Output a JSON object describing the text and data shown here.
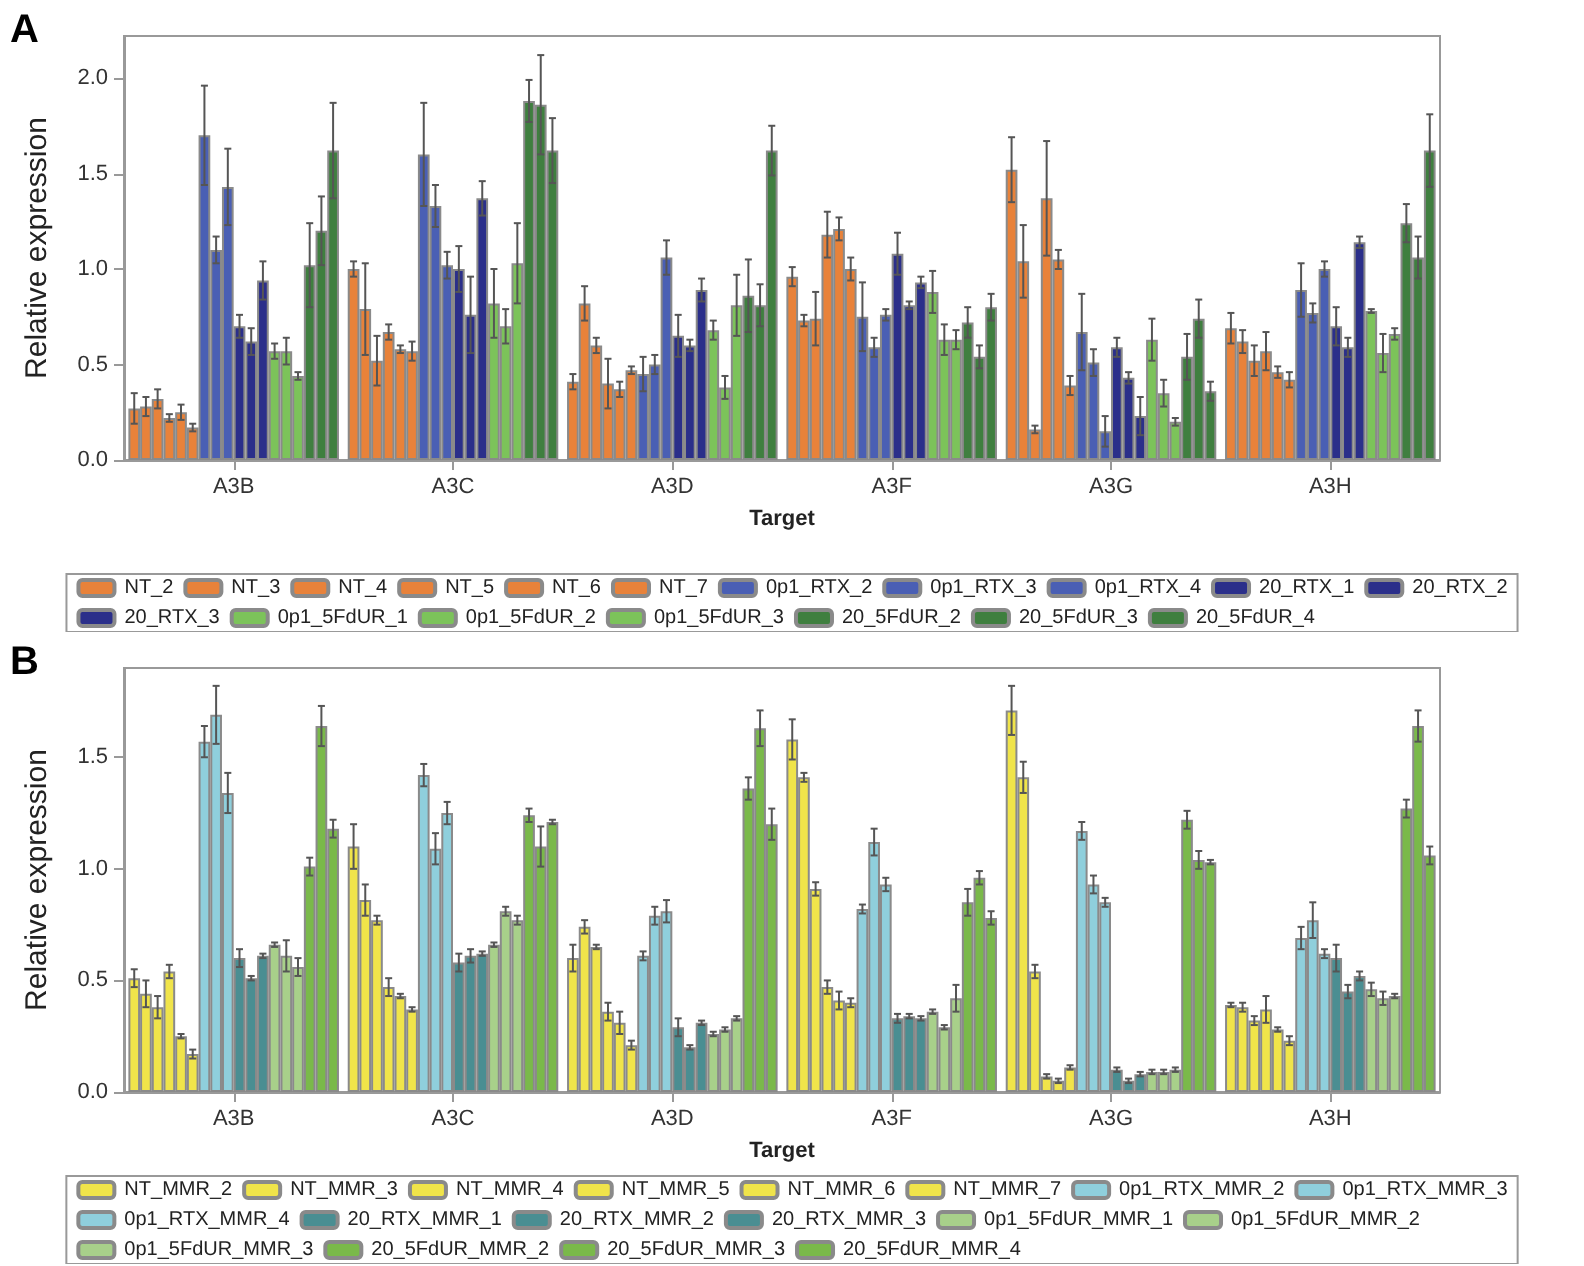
{
  "chart_data": [
    {
      "type": "bar",
      "title": "A",
      "xlabel": "Target",
      "ylabel": "Relative expression",
      "categories": [
        "A3B",
        "A3C",
        "A3D",
        "A3F",
        "A3G",
        "A3H"
      ],
      "ylim": [
        0,
        2.22
      ],
      "yticks": [
        {
          "value": 0,
          "label": "0.0"
        },
        {
          "value": 0.5,
          "label": "0.5"
        },
        {
          "value": 1,
          "label": "1.0"
        },
        {
          "value": 1.5,
          "label": "1.5"
        },
        {
          "value": 2,
          "label": "2.0"
        }
      ],
      "legend": "bottom",
      "series": [
        {
          "name": "NT_2",
          "color": "#e8823a",
          "values": [
            0.27,
            1.0,
            0.41,
            0.96,
            1.52,
            0.69
          ],
          "errors": [
            0.08,
            0.04,
            0.04,
            0.05,
            0.17,
            0.08
          ]
        },
        {
          "name": "NT_3",
          "color": "#e8823a",
          "values": [
            0.28,
            0.79,
            0.82,
            0.73,
            1.04,
            0.62
          ],
          "errors": [
            0.05,
            0.24,
            0.09,
            0.03,
            0.19,
            0.06
          ]
        },
        {
          "name": "NT_4",
          "color": "#e8823a",
          "values": [
            0.32,
            0.52,
            0.6,
            0.74,
            0.16,
            0.52
          ],
          "errors": [
            0.05,
            0.13,
            0.04,
            0.14,
            0.02,
            0.08
          ]
        },
        {
          "name": "NT_5",
          "color": "#e8823a",
          "values": [
            0.22,
            0.67,
            0.4,
            1.18,
            1.37,
            0.57
          ],
          "errors": [
            0.02,
            0.04,
            0.13,
            0.12,
            0.3,
            0.1
          ]
        },
        {
          "name": "NT_6",
          "color": "#e8823a",
          "values": [
            0.25,
            0.58,
            0.37,
            1.21,
            1.05,
            0.46
          ],
          "errors": [
            0.04,
            0.02,
            0.04,
            0.06,
            0.05,
            0.03
          ]
        },
        {
          "name": "NT_7",
          "color": "#e8823a",
          "values": [
            0.17,
            0.57,
            0.47,
            1.0,
            0.39,
            0.42
          ],
          "errors": [
            0.02,
            0.05,
            0.02,
            0.06,
            0.05,
            0.04
          ]
        },
        {
          "name": "0p1_RTX_2",
          "color": "#4a5fb4",
          "values": [
            1.7,
            1.6,
            0.45,
            0.75,
            0.67,
            0.89
          ],
          "errors": [
            0.26,
            0.27,
            0.09,
            0.18,
            0.2,
            0.14
          ]
        },
        {
          "name": "0p1_RTX_3",
          "color": "#4a5fb4",
          "values": [
            1.1,
            1.33,
            0.5,
            0.59,
            0.51,
            0.77
          ],
          "errors": [
            0.07,
            0.11,
            0.05,
            0.05,
            0.07,
            0.05
          ]
        },
        {
          "name": "0p1_RTX_4",
          "color": "#4a5fb4",
          "values": [
            1.43,
            1.02,
            1.06,
            0.76,
            0.15,
            1.0
          ],
          "errors": [
            0.2,
            0.07,
            0.09,
            0.03,
            0.08,
            0.04
          ]
        },
        {
          "name": "20_RTX_1",
          "color": "#2b2f8a",
          "values": [
            0.7,
            1.0,
            0.65,
            1.08,
            0.59,
            0.7
          ],
          "errors": [
            0.06,
            0.12,
            0.11,
            0.11,
            0.05,
            0.1
          ]
        },
        {
          "name": "20_RTX_2",
          "color": "#2b2f8a",
          "values": [
            0.62,
            0.76,
            0.6,
            0.81,
            0.43,
            0.59
          ],
          "errors": [
            0.07,
            0.2,
            0.03,
            0.02,
            0.03,
            0.05
          ]
        },
        {
          "name": "20_RTX_3",
          "color": "#2b2f8a",
          "values": [
            0.94,
            1.37,
            0.89,
            0.93,
            0.23,
            1.14
          ],
          "errors": [
            0.1,
            0.09,
            0.06,
            0.03,
            0.1,
            0.03
          ]
        },
        {
          "name": "0p1_5FdUR_1",
          "color": "#7cc35a",
          "values": [
            0.57,
            0.82,
            0.68,
            0.88,
            0.63,
            0.78
          ],
          "errors": [
            0.04,
            0.18,
            0.05,
            0.11,
            0.11,
            0.01
          ]
        },
        {
          "name": "0p1_5FdUR_2",
          "color": "#7cc35a",
          "values": [
            0.57,
            0.7,
            0.38,
            0.63,
            0.35,
            0.56
          ],
          "errors": [
            0.07,
            0.09,
            0.06,
            0.08,
            0.07,
            0.1
          ]
        },
        {
          "name": "0p1_5FdUR_3",
          "color": "#7cc35a",
          "values": [
            0.44,
            1.03,
            0.81,
            0.63,
            0.2,
            0.66
          ],
          "errors": [
            0.02,
            0.21,
            0.16,
            0.05,
            0.02,
            0.03
          ]
        },
        {
          "name": "20_5FdUR_2",
          "color": "#3f7f3f",
          "values": [
            1.02,
            1.88,
            0.86,
            0.72,
            0.54,
            1.24
          ],
          "errors": [
            0.22,
            0.11,
            0.19,
            0.08,
            0.12,
            0.1
          ]
        },
        {
          "name": "20_5FdUR_3",
          "color": "#3f7f3f",
          "values": [
            1.2,
            1.86,
            0.81,
            0.54,
            0.74,
            1.06
          ],
          "errors": [
            0.18,
            0.26,
            0.11,
            0.06,
            0.1,
            0.11
          ]
        },
        {
          "name": "20_5FdUR_4",
          "color": "#3f7f3f",
          "values": [
            1.62,
            1.62,
            1.62,
            0.8,
            0.36,
            1.62
          ],
          "errors": [
            0.25,
            0.17,
            0.13,
            0.07,
            0.05,
            0.19
          ]
        }
      ]
    },
    {
      "type": "bar",
      "title": "B",
      "xlabel": "Target",
      "ylabel": "Relative expression",
      "categories": [
        "A3B",
        "A3C",
        "A3D",
        "A3F",
        "A3G",
        "A3H"
      ],
      "ylim": [
        0,
        1.9
      ],
      "yticks": [
        {
          "value": 0,
          "label": "0.0"
        },
        {
          "value": 0.5,
          "label": "0.5"
        },
        {
          "value": 1,
          "label": "1.0"
        },
        {
          "value": 1.5,
          "label": "1.5"
        }
      ],
      "legend": "bottom",
      "series": [
        {
          "name": "NT_MMR_2",
          "color": "#f0e44a",
          "values": [
            0.51,
            1.1,
            0.6,
            1.58,
            1.71,
            0.39
          ],
          "errors": [
            0.04,
            0.1,
            0.06,
            0.09,
            0.11,
            0.01
          ]
        },
        {
          "name": "NT_MMR_3",
          "color": "#f0e44a",
          "values": [
            0.44,
            0.86,
            0.74,
            1.41,
            1.41,
            0.38
          ],
          "errors": [
            0.06,
            0.07,
            0.03,
            0.02,
            0.07,
            0.02
          ]
        },
        {
          "name": "NT_MMR_4",
          "color": "#f0e44a",
          "values": [
            0.38,
            0.77,
            0.65,
            0.91,
            0.54,
            0.32
          ],
          "errors": [
            0.05,
            0.02,
            0.01,
            0.03,
            0.03,
            0.02
          ]
        },
        {
          "name": "NT_MMR_5",
          "color": "#f0e44a",
          "values": [
            0.54,
            0.47,
            0.36,
            0.47,
            0.07,
            0.37
          ],
          "errors": [
            0.03,
            0.04,
            0.04,
            0.03,
            0.01,
            0.06
          ]
        },
        {
          "name": "NT_MMR_6",
          "color": "#f0e44a",
          "values": [
            0.25,
            0.43,
            0.31,
            0.41,
            0.05,
            0.28
          ],
          "errors": [
            0.01,
            0.01,
            0.05,
            0.04,
            0.01,
            0.01
          ]
        },
        {
          "name": "NT_MMR_7",
          "color": "#f0e44a",
          "values": [
            0.17,
            0.37,
            0.21,
            0.4,
            0.11,
            0.23
          ],
          "errors": [
            0.02,
            0.01,
            0.02,
            0.02,
            0.01,
            0.02
          ]
        },
        {
          "name": "0p1_RTX_MMR_2",
          "color": "#8fcfdc",
          "values": [
            1.57,
            1.42,
            0.61,
            0.82,
            1.17,
            0.69
          ],
          "errors": [
            0.07,
            0.05,
            0.02,
            0.02,
            0.04,
            0.05
          ]
        },
        {
          "name": "0p1_RTX_MMR_3",
          "color": "#8fcfdc",
          "values": [
            1.69,
            1.09,
            0.79,
            1.12,
            0.93,
            0.77
          ],
          "errors": [
            0.13,
            0.07,
            0.04,
            0.06,
            0.04,
            0.08
          ]
        },
        {
          "name": "0p1_RTX_MMR_4",
          "color": "#8fcfdc",
          "values": [
            1.34,
            1.25,
            0.81,
            0.93,
            0.85,
            0.62
          ],
          "errors": [
            0.09,
            0.05,
            0.05,
            0.03,
            0.02,
            0.02
          ]
        },
        {
          "name": "20_RTX_MMR_1",
          "color": "#4a8e92",
          "values": [
            0.6,
            0.58,
            0.29,
            0.33,
            0.1,
            0.6
          ],
          "errors": [
            0.04,
            0.04,
            0.04,
            0.02,
            0.01,
            0.06
          ]
        },
        {
          "name": "20_RTX_MMR_2",
          "color": "#4a8e92",
          "values": [
            0.51,
            0.61,
            0.2,
            0.34,
            0.05,
            0.45
          ],
          "errors": [
            0.01,
            0.03,
            0.01,
            0.01,
            0.01,
            0.03
          ]
        },
        {
          "name": "20_RTX_MMR_3",
          "color": "#4a8e92",
          "values": [
            0.61,
            0.62,
            0.31,
            0.33,
            0.08,
            0.52
          ],
          "errors": [
            0.01,
            0.01,
            0.01,
            0.01,
            0.01,
            0.02
          ]
        },
        {
          "name": "0p1_5FdUR_MMR_1",
          "color": "#a8d08a",
          "values": [
            0.66,
            0.66,
            0.26,
            0.36,
            0.09,
            0.46
          ],
          "errors": [
            0.01,
            0.01,
            0.01,
            0.01,
            0.01,
            0.03
          ]
        },
        {
          "name": "0p1_5FdUR_MMR_2",
          "color": "#a8d08a",
          "values": [
            0.61,
            0.81,
            0.28,
            0.29,
            0.09,
            0.42
          ],
          "errors": [
            0.07,
            0.02,
            0.01,
            0.01,
            0.01,
            0.03
          ]
        },
        {
          "name": "0p1_5FdUR_MMR_3",
          "color": "#a8d08a",
          "values": [
            0.56,
            0.77,
            0.33,
            0.42,
            0.1,
            0.43
          ],
          "errors": [
            0.04,
            0.02,
            0.01,
            0.06,
            0.01,
            0.01
          ]
        },
        {
          "name": "20_5FdUR_MMR_2",
          "color": "#7ab94a",
          "values": [
            1.01,
            1.24,
            1.36,
            0.85,
            1.22,
            1.27
          ],
          "errors": [
            0.04,
            0.03,
            0.05,
            0.06,
            0.04,
            0.04
          ]
        },
        {
          "name": "20_5FdUR_MMR_3",
          "color": "#7ab94a",
          "values": [
            1.64,
            1.1,
            1.63,
            0.96,
            1.04,
            1.64
          ],
          "errors": [
            0.09,
            0.09,
            0.08,
            0.03,
            0.04,
            0.07
          ]
        },
        {
          "name": "20_5FdUR_MMR_4",
          "color": "#7ab94a",
          "values": [
            1.18,
            1.21,
            1.2,
            0.78,
            1.03,
            1.06
          ],
          "errors": [
            0.04,
            0.01,
            0.07,
            0.03,
            0.01,
            0.04
          ]
        }
      ]
    }
  ]
}
